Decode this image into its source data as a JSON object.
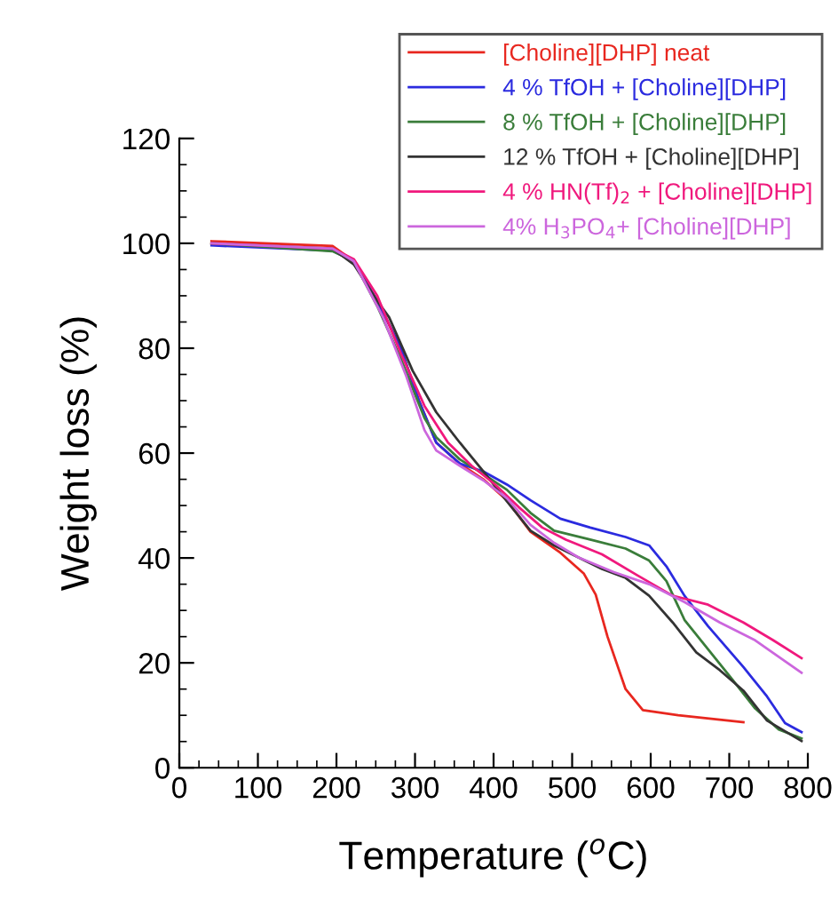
{
  "chart_data": {
    "type": "line",
    "xlabel": "Temperature ($^{o}$C)",
    "ylabel": "Weight loss (%)",
    "xlim": [
      0,
      800
    ],
    "ylim": [
      0,
      120
    ],
    "xticks": [
      0,
      100,
      200,
      300,
      400,
      500,
      600,
      700,
      800
    ],
    "yticks": [
      0,
      20,
      40,
      60,
      80,
      100,
      120
    ],
    "grid": false,
    "legend": "top right",
    "marker": "none",
    "line_style": "solid",
    "series": [
      {
        "name": "[Choline][DHP] neat",
        "color": "#e8271f",
        "x": [
          41,
          195,
          222,
          252,
          282,
          305,
          327,
          357,
          387,
          417,
          447,
          485,
          515,
          530,
          545,
          568,
          590,
          635,
          718
        ],
        "values": [
          100.4,
          99.5,
          96.6,
          89,
          80,
          70,
          62,
          58,
          55,
          51,
          45,
          41,
          37,
          33,
          25,
          15,
          11,
          10,
          8.7
        ]
      },
      {
        "name": "4 % TfOH + [Choline][DHP]",
        "color": "#2b2bdf",
        "x": [
          41,
          195,
          222,
          252,
          282,
          305,
          327,
          357,
          387,
          417,
          447,
          485,
          523,
          568,
          598,
          620,
          643,
          673,
          718,
          748,
          771,
          792
        ],
        "values": [
          99.6,
          98.6,
          96.6,
          89,
          80,
          70,
          62,
          58,
          56.5,
          54,
          51,
          47.5,
          45.8,
          44,
          42.4,
          38.4,
          32.8,
          27,
          19.2,
          13.6,
          8.5,
          6.8
        ]
      },
      {
        "name": "8 % TfOH + [Choline][DHP]",
        "color": "#3a7d3a",
        "x": [
          41,
          195,
          222,
          252,
          282,
          312,
          327,
          357,
          387,
          417,
          447,
          477,
          523,
          568,
          598,
          620,
          643,
          673,
          703,
          733,
          763,
          792
        ],
        "values": [
          100,
          98.5,
          96.6,
          88,
          78,
          66.7,
          63,
          58.8,
          56,
          53,
          48.6,
          45.2,
          43.5,
          41.8,
          39.5,
          35.6,
          28.2,
          22.6,
          17,
          11.3,
          7.3,
          5.6
        ]
      },
      {
        "name": "12 % TfOH + [Choline][DHP]",
        "color": "#333333",
        "x": [
          41,
          195,
          222,
          252,
          267,
          297,
          327,
          357,
          387,
          417,
          447,
          477,
          508,
          538,
          568,
          598,
          628,
          658,
          688,
          718,
          748,
          792
        ],
        "values": [
          100,
          99,
          96,
          89,
          85.9,
          75.7,
          67.8,
          62,
          56.5,
          50.8,
          45.2,
          42.4,
          40.1,
          37.9,
          36.2,
          32.8,
          27.7,
          22,
          18.6,
          14.7,
          9,
          5.1
        ]
      },
      {
        "name": "4 % HN(Tf)$_{2}$ + [Choline][DHP]",
        "color": "#f0197d",
        "x": [
          41,
          195,
          222,
          252,
          282,
          312,
          342,
          372,
          402,
          432,
          462,
          492,
          538,
          583,
          628,
          673,
          718,
          756,
          792
        ],
        "values": [
          100,
          99,
          97,
          90,
          79,
          69,
          62,
          57.6,
          54,
          49.7,
          45.8,
          43.5,
          40.7,
          36.7,
          32.8,
          31.1,
          27.7,
          24.3,
          20.9
        ]
      },
      {
        "name": "4% H$_{3}$PO$_{4}$+ [Choline][DHP]",
        "color": "#cc66dd",
        "x": [
          41,
          195,
          222,
          259,
          289,
          312,
          327,
          357,
          387,
          417,
          447,
          477,
          508,
          553,
          598,
          643,
          688,
          733,
          792
        ],
        "values": [
          100,
          99,
          96.6,
          86,
          74.6,
          64.4,
          60.5,
          57.6,
          54.8,
          51.4,
          46.3,
          42.9,
          40.1,
          37.3,
          35,
          31.6,
          27.7,
          24.3,
          18.1
        ]
      }
    ]
  }
}
